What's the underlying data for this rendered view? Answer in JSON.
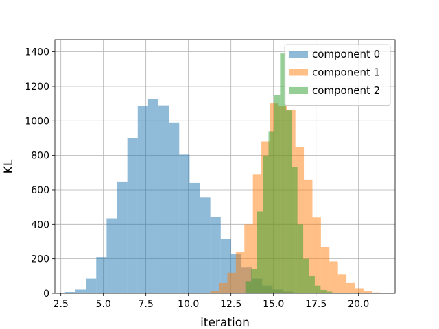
{
  "chart_data": {
    "type": "histogram",
    "title": "",
    "xlabel": "iteration",
    "ylabel": "KL",
    "xlim": [
      2.15,
      22.15
    ],
    "ylim": [
      0,
      1470
    ],
    "xticks": [
      2.5,
      5.0,
      7.5,
      10.0,
      12.5,
      15.0,
      17.5,
      20.0
    ],
    "yticks": [
      0,
      200,
      400,
      600,
      800,
      1000,
      1200,
      1400
    ],
    "grid": true,
    "legend_position": "top-right",
    "series": [
      {
        "name": "component 0",
        "color": "#1f77b4",
        "alpha": 0.5,
        "bin_edges": [
          2.75,
          3.36,
          3.97,
          4.58,
          5.19,
          5.8,
          6.41,
          7.02,
          7.63,
          8.24,
          8.85,
          9.46,
          10.07,
          10.68,
          11.29,
          11.9,
          12.51,
          13.12,
          13.73,
          14.34,
          14.95,
          15.56,
          16.16
        ],
        "counts": [
          8,
          22,
          85,
          210,
          435,
          648,
          900,
          1085,
          1125,
          1090,
          990,
          805,
          640,
          555,
          445,
          315,
          228,
          150,
          85,
          45,
          22,
          10
        ]
      },
      {
        "name": "component 1",
        "color": "#ff7f0e",
        "alpha": 0.5,
        "bin_edges": [
          11.29,
          11.79,
          12.29,
          12.79,
          13.29,
          13.79,
          14.29,
          14.79,
          15.29,
          15.79,
          16.29,
          16.79,
          17.29,
          17.79,
          18.29,
          18.79,
          19.29,
          19.79,
          20.29,
          20.79,
          21.29
        ],
        "counts": [
          15,
          60,
          120,
          240,
          400,
          690,
          880,
          1100,
          1085,
          1065,
          850,
          660,
          440,
          270,
          185,
          110,
          60,
          30,
          12,
          5
        ]
      },
      {
        "name": "component 2",
        "color": "#2ca02c",
        "alpha": 0.5,
        "bin_edges": [
          13.35,
          13.69,
          14.03,
          14.37,
          14.71,
          15.05,
          15.39,
          15.73,
          16.07,
          16.41,
          16.75,
          17.09,
          17.43,
          17.77,
          18.11,
          18.45
        ],
        "counts": [
          70,
          140,
          475,
          800,
          940,
          1150,
          1390,
          1060,
          735,
          400,
          200,
          100,
          45,
          20,
          10
        ]
      }
    ]
  }
}
